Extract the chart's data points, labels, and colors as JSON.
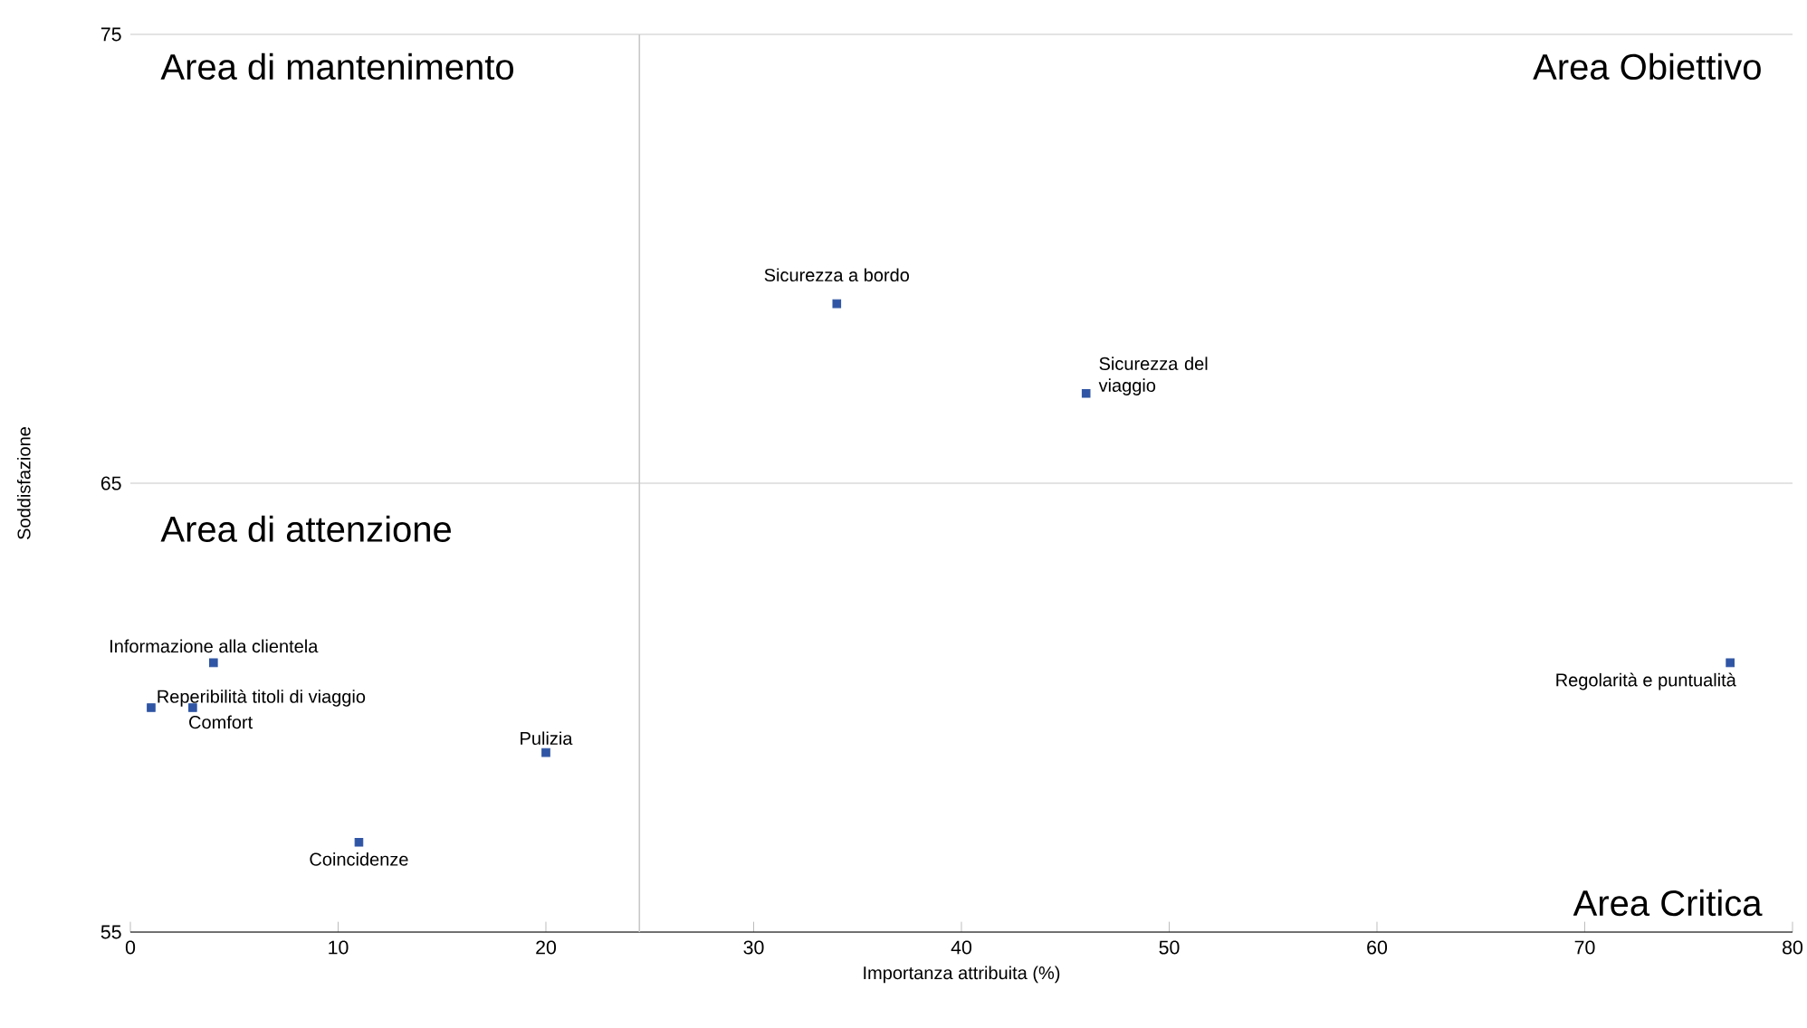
{
  "chart_data": {
    "type": "scatter",
    "xlabel": "Importanza attribuita (%)",
    "ylabel": "Soddisfazione",
    "x": [
      34,
      46,
      77,
      4,
      1,
      3,
      20,
      11
    ],
    "values": [
      69,
      67,
      61,
      61,
      60,
      60,
      59,
      57
    ],
    "color": "#2f55a4",
    "marker": "square",
    "xlim": [
      0,
      80
    ],
    "ylim": [
      55,
      75
    ],
    "xticks": [
      0,
      10,
      20,
      30,
      40,
      50,
      60,
      70,
      80
    ],
    "yticks": [
      55,
      65,
      75
    ],
    "grid": "y",
    "ref_lines": [
      {
        "axis": "x",
        "value": 24.5,
        "color": "#c8c8c8"
      }
    ],
    "annotations": [
      "Area di mantenimento",
      "Area Obiettivo",
      "Area di attenzione",
      "Area Critica",
      {
        "text": "Sicurezza a bordo",
        "x": 34,
        "y": 69
      },
      {
        "text": "Sicurezza del viaggio",
        "x": 46,
        "y": 67
      },
      {
        "text": "Regolarità e puntualità",
        "x": 77,
        "y": 61
      },
      {
        "text": "Informazione alla clientela",
        "x": 4,
        "y": 61
      },
      {
        "text": "Reperibilità titoli di viaggio",
        "x": 1,
        "y": 60
      },
      {
        "text": "Comfort",
        "x": 3,
        "y": 60
      },
      {
        "text": "Pulizia",
        "x": 20,
        "y": 59
      },
      {
        "text": "Coincidenze",
        "x": 11,
        "y": 57
      }
    ]
  }
}
